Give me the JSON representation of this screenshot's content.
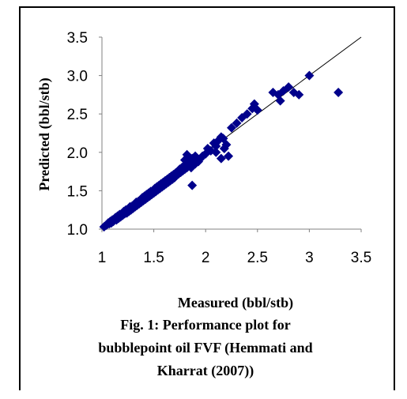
{
  "caption": {
    "line1": "Fig. 1: Performance plot for",
    "line2": "bubblepoint oil FVF (Hemmati and",
    "line3": "Kharrat (2007))"
  },
  "chart_data": {
    "type": "scatter",
    "title": "",
    "xlabel": "Measured (bbl/stb)",
    "ylabel": "Predicted (bbl/stb)",
    "xlim": [
      1,
      3.5
    ],
    "ylim": [
      1.0,
      3.5
    ],
    "x_ticks": [
      "1",
      "1.5",
      "2",
      "2.5",
      "3",
      "3.5"
    ],
    "y_ticks": [
      "1.0",
      "1.5",
      "2.0",
      "2.5",
      "3.0",
      "3.5"
    ],
    "reference_line": [
      [
        1,
        1
      ],
      [
        3.5,
        3.5
      ]
    ],
    "grid": false,
    "marker": "diamond",
    "marker_color": "#00008B",
    "points": [
      [
        1.02,
        1.03
      ],
      [
        1.04,
        1.05
      ],
      [
        1.05,
        1.06
      ],
      [
        1.06,
        1.08
      ],
      [
        1.07,
        1.07
      ],
      [
        1.08,
        1.1
      ],
      [
        1.09,
        1.08
      ],
      [
        1.1,
        1.12
      ],
      [
        1.11,
        1.1
      ],
      [
        1.12,
        1.13
      ],
      [
        1.13,
        1.15
      ],
      [
        1.14,
        1.12
      ],
      [
        1.15,
        1.17
      ],
      [
        1.16,
        1.14
      ],
      [
        1.17,
        1.19
      ],
      [
        1.18,
        1.16
      ],
      [
        1.19,
        1.2
      ],
      [
        1.2,
        1.18
      ],
      [
        1.21,
        1.23
      ],
      [
        1.22,
        1.2
      ],
      [
        1.23,
        1.25
      ],
      [
        1.24,
        1.21
      ],
      [
        1.25,
        1.26
      ],
      [
        1.26,
        1.23
      ],
      [
        1.27,
        1.29
      ],
      [
        1.28,
        1.25
      ],
      [
        1.29,
        1.3
      ],
      [
        1.3,
        1.27
      ],
      [
        1.31,
        1.32
      ],
      [
        1.32,
        1.29
      ],
      [
        1.33,
        1.35
      ],
      [
        1.34,
        1.31
      ],
      [
        1.35,
        1.36
      ],
      [
        1.36,
        1.33
      ],
      [
        1.37,
        1.38
      ],
      [
        1.38,
        1.35
      ],
      [
        1.39,
        1.41
      ],
      [
        1.4,
        1.37
      ],
      [
        1.41,
        1.43
      ],
      [
        1.42,
        1.39
      ],
      [
        1.43,
        1.45
      ],
      [
        1.44,
        1.41
      ],
      [
        1.45,
        1.47
      ],
      [
        1.46,
        1.43
      ],
      [
        1.47,
        1.49
      ],
      [
        1.48,
        1.45
      ],
      [
        1.49,
        1.5
      ],
      [
        1.5,
        1.47
      ],
      [
        1.51,
        1.53
      ],
      [
        1.52,
        1.49
      ],
      [
        1.53,
        1.55
      ],
      [
        1.54,
        1.51
      ],
      [
        1.55,
        1.57
      ],
      [
        1.56,
        1.53
      ],
      [
        1.57,
        1.59
      ],
      [
        1.58,
        1.55
      ],
      [
        1.59,
        1.61
      ],
      [
        1.6,
        1.57
      ],
      [
        1.61,
        1.63
      ],
      [
        1.62,
        1.59
      ],
      [
        1.63,
        1.65
      ],
      [
        1.64,
        1.61
      ],
      [
        1.65,
        1.67
      ],
      [
        1.66,
        1.63
      ],
      [
        1.67,
        1.69
      ],
      [
        1.68,
        1.65
      ],
      [
        1.69,
        1.71
      ],
      [
        1.7,
        1.67
      ],
      [
        1.71,
        1.73
      ],
      [
        1.72,
        1.7
      ],
      [
        1.73,
        1.75
      ],
      [
        1.74,
        1.72
      ],
      [
        1.75,
        1.78
      ],
      [
        1.76,
        1.74
      ],
      [
        1.77,
        1.8
      ],
      [
        1.78,
        1.76
      ],
      [
        1.79,
        1.82
      ],
      [
        1.8,
        1.78
      ],
      [
        1.81,
        1.85
      ],
      [
        1.82,
        1.8
      ],
      [
        1.83,
        1.87
      ],
      [
        1.84,
        1.84
      ],
      [
        1.85,
        1.9
      ],
      [
        1.86,
        1.86
      ],
      [
        1.87,
        1.92
      ],
      [
        1.88,
        1.88
      ],
      [
        1.9,
        1.95
      ],
      [
        1.92,
        1.9
      ],
      [
        1.8,
        1.9
      ],
      [
        1.82,
        1.97
      ],
      [
        1.84,
        1.93
      ],
      [
        1.86,
        1.8
      ],
      [
        1.87,
        1.57
      ],
      [
        1.9,
        1.85
      ],
      [
        1.93,
        1.88
      ],
      [
        1.95,
        1.92
      ],
      [
        1.97,
        1.95
      ],
      [
        2.0,
        1.98
      ],
      [
        2.02,
        2.05
      ],
      [
        2.05,
        2.02
      ],
      [
        2.08,
        2.12
      ],
      [
        2.1,
        2.08
      ],
      [
        2.12,
        2.15
      ],
      [
        2.15,
        2.2
      ],
      [
        2.17,
        2.18
      ],
      [
        2.18,
        2.05
      ],
      [
        2.2,
        2.1
      ],
      [
        2.22,
        1.95
      ],
      [
        2.15,
        1.92
      ],
      [
        2.1,
        2.0
      ],
      [
        2.25,
        2.32
      ],
      [
        2.3,
        2.38
      ],
      [
        2.35,
        2.45
      ],
      [
        2.4,
        2.5
      ],
      [
        2.45,
        2.57
      ],
      [
        2.47,
        2.63
      ],
      [
        2.5,
        2.55
      ],
      [
        2.65,
        2.78
      ],
      [
        2.7,
        2.75
      ],
      [
        2.72,
        2.67
      ],
      [
        2.75,
        2.8
      ],
      [
        2.8,
        2.85
      ],
      [
        2.85,
        2.78
      ],
      [
        2.9,
        2.75
      ],
      [
        3.0,
        3.0
      ],
      [
        3.28,
        2.78
      ]
    ]
  }
}
